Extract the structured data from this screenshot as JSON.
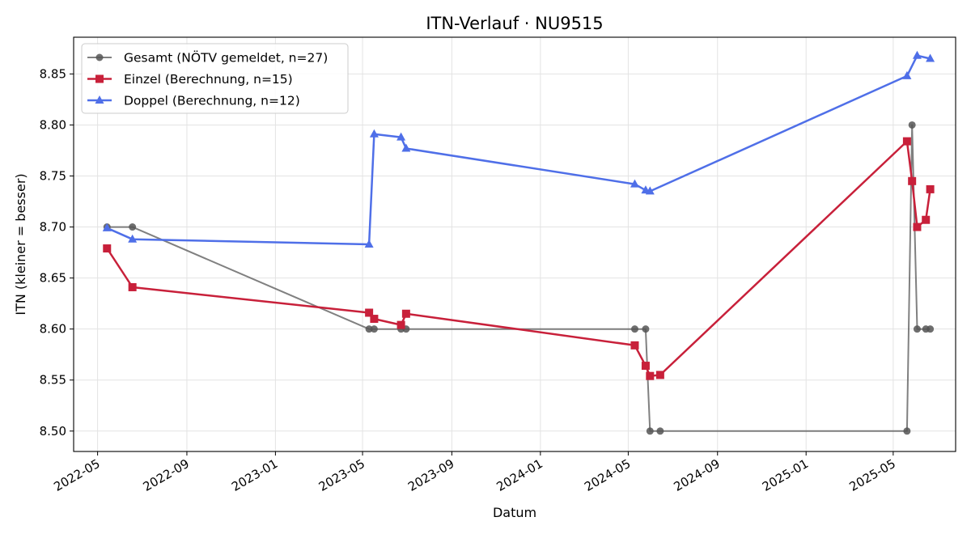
{
  "chart_data": {
    "type": "line",
    "title": "ITN-Verlauf · NU9515",
    "xlabel": "Datum",
    "ylabel": "ITN  (kleiner = besser)",
    "ylim": [
      8.48,
      8.886
    ],
    "xlim": [
      "2022-03-29",
      "2025-07-26"
    ],
    "grid": true,
    "legend_position": "top-left",
    "x_ticks": [
      "2022-05",
      "2022-09",
      "2023-01",
      "2023-05",
      "2023-09",
      "2024-01",
      "2024-05",
      "2024-09",
      "2025-01",
      "2025-05"
    ],
    "y_ticks": [
      "8.50",
      "8.55",
      "8.60",
      "8.65",
      "8.70",
      "8.75",
      "8.80",
      "8.85"
    ],
    "series": [
      {
        "name": "Gesamt (NÖTV gemeldet, n=27)",
        "color": "#555555",
        "marker": "circle",
        "points": [
          [
            "2022-05-14",
            8.7
          ],
          [
            "2022-06-18",
            8.7
          ],
          [
            "2023-05-10",
            8.6
          ],
          [
            "2023-05-17",
            8.6
          ],
          [
            "2023-06-23",
            8.6
          ],
          [
            "2023-06-30",
            8.6
          ],
          [
            "2024-05-10",
            8.6
          ],
          [
            "2024-05-25",
            8.6
          ],
          [
            "2024-05-31",
            8.5
          ],
          [
            "2024-06-14",
            8.5
          ],
          [
            "2025-05-20",
            8.5
          ],
          [
            "2025-05-27",
            8.8
          ],
          [
            "2025-06-03",
            8.6
          ],
          [
            "2025-06-15",
            8.6
          ],
          [
            "2025-06-21",
            8.6
          ]
        ]
      },
      {
        "name": "Einzel (Berechnung, n=15)",
        "color": "#c8203a",
        "marker": "square",
        "points": [
          [
            "2022-05-14",
            8.679
          ],
          [
            "2022-06-18",
            8.641
          ],
          [
            "2023-05-10",
            8.616
          ],
          [
            "2023-05-17",
            8.61
          ],
          [
            "2023-06-23",
            8.604
          ],
          [
            "2023-06-30",
            8.615
          ],
          [
            "2024-05-10",
            8.584
          ],
          [
            "2024-05-25",
            8.564
          ],
          [
            "2024-05-31",
            8.554
          ],
          [
            "2024-06-14",
            8.555
          ],
          [
            "2025-05-20",
            8.784
          ],
          [
            "2025-05-27",
            8.745
          ],
          [
            "2025-06-03",
            8.7
          ],
          [
            "2025-06-15",
            8.707
          ],
          [
            "2025-06-21",
            8.737
          ]
        ]
      },
      {
        "name": "Doppel (Berechnung, n=12)",
        "color": "#4f6fe8",
        "marker": "triangle",
        "points": [
          [
            "2022-05-14",
            8.699
          ],
          [
            "2022-06-18",
            8.688
          ],
          [
            "2023-05-10",
            8.683
          ],
          [
            "2023-05-17",
            8.791
          ],
          [
            "2023-06-23",
            8.788
          ],
          [
            "2023-06-30",
            8.777
          ],
          [
            "2024-05-10",
            8.742
          ],
          [
            "2024-05-25",
            8.736
          ],
          [
            "2024-05-31",
            8.735
          ],
          [
            "2025-05-20",
            8.848
          ],
          [
            "2025-06-03",
            8.868
          ],
          [
            "2025-06-21",
            8.865
          ]
        ]
      }
    ]
  }
}
